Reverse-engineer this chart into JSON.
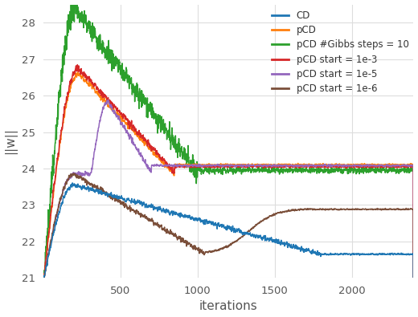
{
  "xlabel": "iterations",
  "ylabel": "||w||",
  "ylim": [
    21,
    28.5
  ],
  "xlim": [
    0,
    2400
  ],
  "yticks": [
    21,
    22,
    23,
    24,
    25,
    26,
    27,
    28
  ],
  "xticks": [
    500,
    1000,
    1500,
    2000
  ],
  "colors": {
    "CD": "#1f77b4",
    "pCD": "#ff7f0e",
    "pCD_gibbs10": "#2ca02c",
    "pCD_start_1e3": "#d62728",
    "pCD_start_1e5": "#9467bd",
    "pCD_start_1e6": "#7b4f3a"
  },
  "legend_labels": [
    "CD",
    "pCD",
    "pCD #Gibbs steps = 10",
    "pCD start = 1e-3",
    "pCD start = 1e-5",
    "pCD start = 1e-6"
  ],
  "background_color": "#ffffff",
  "grid_color": "#dddddd",
  "figsize": [
    5.2,
    3.95
  ],
  "dpi": 100
}
